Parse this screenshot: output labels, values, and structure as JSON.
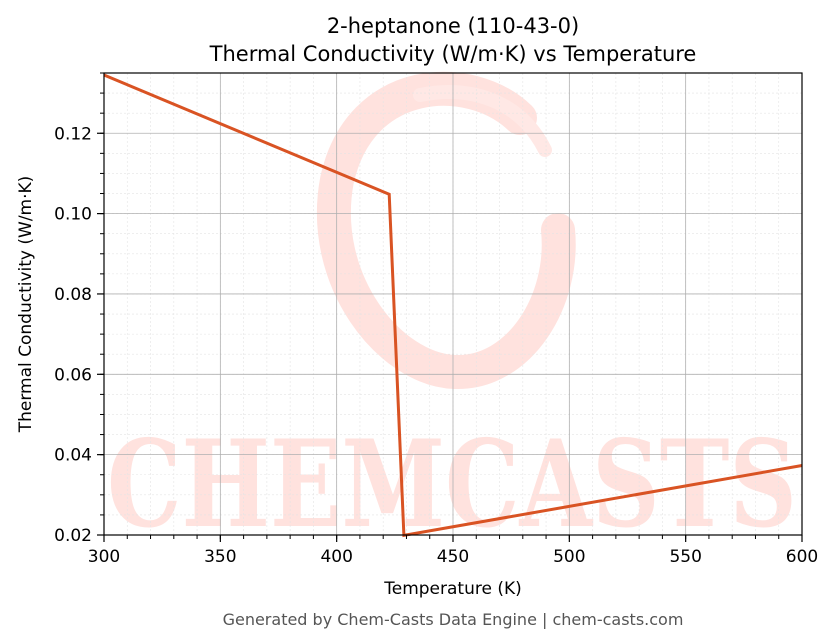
{
  "chart_data": {
    "type": "line",
    "title_line1": "2-heptanone (110-43-0)",
    "title_line2": "Thermal Conductivity (W/m·K) vs Temperature",
    "xlabel": "Temperature (K)",
    "ylabel": "Thermal Conductivity (W/m·K)",
    "xlim": [
      300,
      600
    ],
    "ylim": [
      0.02,
      0.135
    ],
    "xticks": [
      300,
      350,
      400,
      450,
      500,
      550,
      600
    ],
    "xtick_labels": [
      "300",
      "350",
      "400",
      "450",
      "500",
      "550",
      "600"
    ],
    "yticks": [
      0.02,
      0.04,
      0.06,
      0.08,
      0.1,
      0.12
    ],
    "ytick_labels": [
      "0.02",
      "0.04",
      "0.06",
      "0.08",
      "0.10",
      "0.12"
    ],
    "grid": true,
    "series": [
      {
        "x": [
          300,
          422.6,
          428.9,
          600
        ],
        "y": [
          0.1345,
          0.1048,
          0.0199,
          0.0373
        ]
      }
    ]
  },
  "colors": {
    "line": "#d95323",
    "watermark": "#ffe2de",
    "major_grid": "#b0b0b0",
    "minor_grid": "#e4e4e4"
  },
  "watermark_text": "CHEMCASTS",
  "footer": "Generated by Chem-Casts Data Engine | chem-casts.com"
}
